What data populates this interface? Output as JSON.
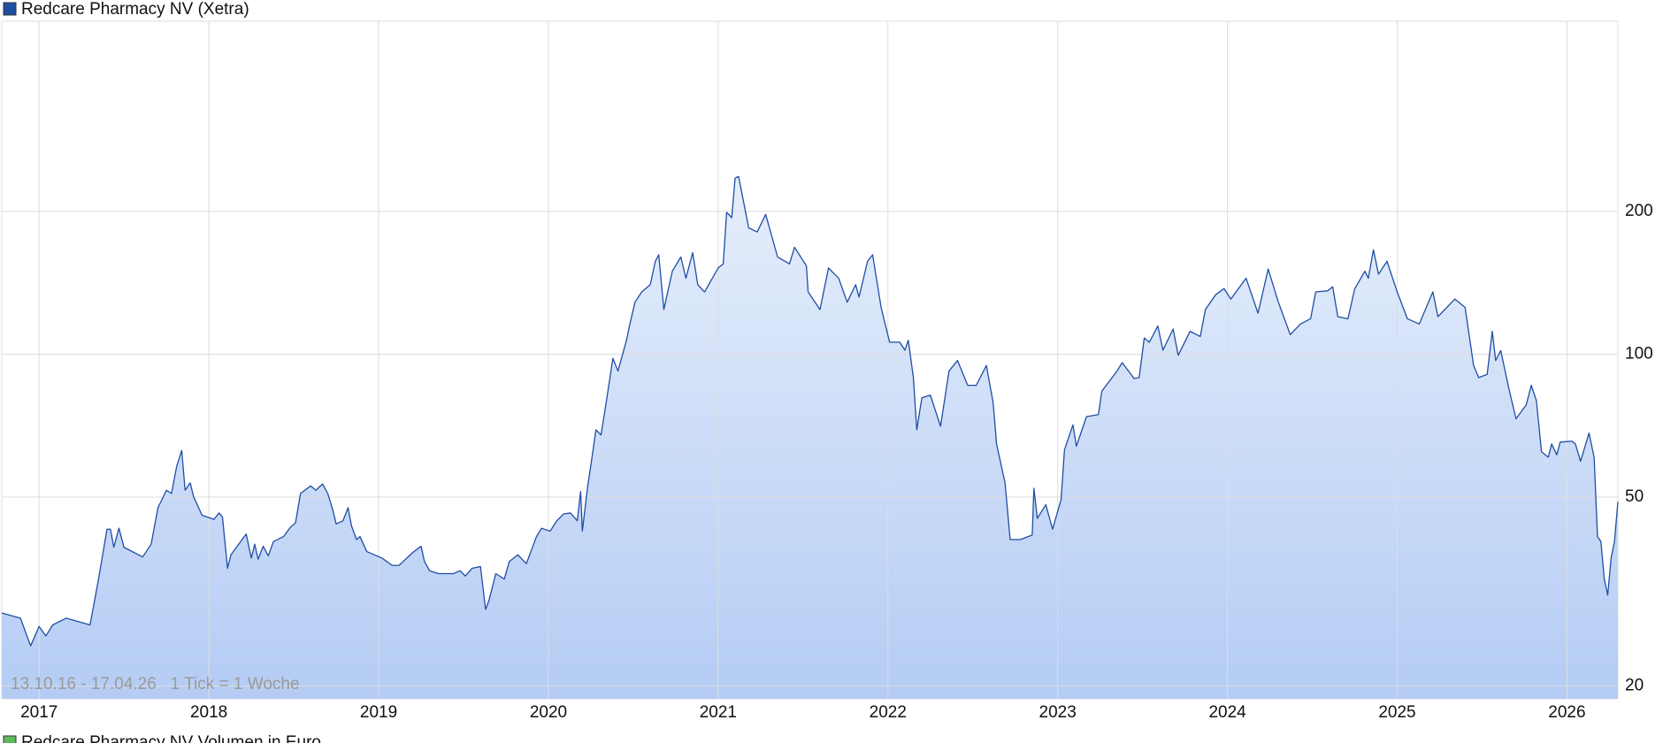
{
  "chart_data": {
    "type": "area",
    "annotation": "13.10.16 - 17.04.26   1 Tick = 1 Woche",
    "secondary_legend": {
      "name": "Redcare Pharmacy NV Volumen in Euro",
      "color": "#5cb85c"
    },
    "log_y": true,
    "grid": true,
    "legend": "top-left",
    "fill_top": "#e6eefb",
    "fill_bottom": "#b4ccf4",
    "xlim": [
      2016.78,
      2026.3
    ],
    "xticks": [
      2017,
      2018,
      2019,
      2020,
      2021,
      2022,
      2023,
      2024,
      2025,
      2026
    ],
    "ylim": [
      18.8,
      503
    ],
    "yticks": [
      20,
      50,
      100,
      200
    ],
    "x": [
      2016.78,
      2016.89,
      2016.95,
      2017.0,
      2017.04,
      2017.08,
      2017.16,
      2017.3,
      2017.35,
      2017.4,
      2017.42,
      2017.44,
      2017.47,
      2017.5,
      2017.61,
      2017.66,
      2017.7,
      2017.75,
      2017.78,
      2017.81,
      2017.84,
      2017.86,
      2017.89,
      2017.91,
      2017.96,
      2018.03,
      2018.06,
      2018.08,
      2018.11,
      2018.13,
      2018.2,
      2018.22,
      2018.25,
      2018.27,
      2018.29,
      2018.32,
      2018.35,
      2018.38,
      2018.44,
      2018.48,
      2018.51,
      2018.54,
      2018.6,
      2018.63,
      2018.67,
      2018.7,
      2018.73,
      2018.75,
      2018.79,
      2018.82,
      2018.84,
      2018.87,
      2018.89,
      2018.93,
      2019.02,
      2019.08,
      2019.12,
      2019.2,
      2019.25,
      2019.27,
      2019.3,
      2019.35,
      2019.44,
      2019.48,
      2019.51,
      2019.55,
      2019.6,
      2019.63,
      2019.65,
      2019.69,
      2019.74,
      2019.77,
      2019.82,
      2019.87,
      2019.93,
      2019.96,
      2020.01,
      2020.05,
      2020.09,
      2020.13,
      2020.17,
      2020.19,
      2020.2,
      2020.23,
      2020.26,
      2020.28,
      2020.31,
      2020.34,
      2020.38,
      2020.41,
      2020.46,
      2020.48,
      2020.51,
      2020.55,
      2020.6,
      2020.63,
      2020.65,
      2020.68,
      2020.73,
      2020.78,
      2020.81,
      2020.85,
      2020.88,
      2020.92,
      2021.0,
      2021.03,
      2021.05,
      2021.08,
      2021.1,
      2021.12,
      2021.18,
      2021.23,
      2021.28,
      2021.35,
      2021.42,
      2021.45,
      2021.52,
      2021.53,
      2021.6,
      2021.65,
      2021.71,
      2021.76,
      2021.81,
      2021.83,
      2021.88,
      2021.91,
      2021.96,
      2022.01,
      2022.07,
      2022.1,
      2022.12,
      2022.15,
      2022.17,
      2022.2,
      2022.25,
      2022.31,
      2022.36,
      2022.41,
      2022.47,
      2022.52,
      2022.58,
      2022.62,
      2022.64,
      2022.69,
      2022.72,
      2022.78,
      2022.85,
      2022.86,
      2022.88,
      2022.93,
      2022.97,
      2023.02,
      2023.04,
      2023.09,
      2023.11,
      2023.17,
      2023.24,
      2023.26,
      2023.35,
      2023.38,
      2023.45,
      2023.48,
      2023.51,
      2023.54,
      2023.59,
      2023.62,
      2023.68,
      2023.71,
      2023.78,
      2023.84,
      2023.87,
      2023.93,
      2023.98,
      2024.02,
      2024.11,
      2024.18,
      2024.24,
      2024.3,
      2024.37,
      2024.43,
      2024.49,
      2024.52,
      2024.59,
      2024.62,
      2024.65,
      2024.71,
      2024.75,
      2024.81,
      2024.83,
      2024.86,
      2024.89,
      2024.94,
      2025.0,
      2025.06,
      2025.13,
      2025.21,
      2025.24,
      2025.34,
      2025.4,
      2025.45,
      2025.48,
      2025.53,
      2025.56,
      2025.58,
      2025.61,
      2025.66,
      2025.7,
      2025.76,
      2025.79,
      2025.82,
      2025.85,
      2025.89,
      2025.91,
      2025.94,
      2025.96,
      2026.03,
      2026.05,
      2026.08,
      2026.13,
      2026.16,
      2026.18,
      2026.2,
      2026.22,
      2026.24,
      2026.26,
      2026.28,
      2026.3
    ],
    "series": [
      {
        "name": "Redcare Pharmacy NV (Xetra)",
        "color": "#1f4ea3",
        "values": [
          28.5,
          27.8,
          24.3,
          26.7,
          25.5,
          26.9,
          27.8,
          26.9,
          33.6,
          42.8,
          42.8,
          39.2,
          43.0,
          39.2,
          37.4,
          39.8,
          47.5,
          51.7,
          50.9,
          58,
          62.7,
          51.7,
          53.6,
          50.1,
          45.8,
          44.9,
          46.3,
          45.4,
          35.4,
          37.8,
          40.9,
          41.8,
          37.2,
          39.8,
          37.0,
          39.4,
          37.6,
          40.3,
          41.3,
          43.2,
          44.1,
          50.9,
          52.8,
          51.7,
          53.3,
          50.9,
          47,
          43.9,
          44.6,
          47.5,
          43.5,
          40.7,
          41.3,
          38.4,
          37.2,
          35.9,
          35.9,
          38.2,
          39.4,
          36.6,
          35.0,
          34.5,
          34.5,
          35.0,
          34.1,
          35.4,
          35.7,
          29.0,
          30.3,
          34.5,
          33.6,
          36.6,
          37.8,
          36.2,
          41.3,
          43.0,
          42.4,
          44.6,
          46.1,
          46.3,
          44.6,
          51.4,
          42.4,
          52.2,
          61.7,
          69.3,
          67.6,
          79,
          98,
          92.2,
          107,
          115.8,
          128.7,
          135.3,
          140.1,
          157,
          162,
          124.2,
          149.6,
          160.3,
          144.6,
          163.7,
          140.1,
          135.3,
          152,
          155,
          199,
          194,
          235,
          237,
          184.6,
          181,
          197,
          160.3,
          155,
          168,
          153.5,
          135.3,
          124.2,
          152,
          144.6,
          128.7,
          140.1,
          132,
          157,
          162,
          125.5,
          106,
          106,
          102,
          107,
          89.3,
          69.3,
          81,
          82,
          70.5,
          92.2,
          97,
          86,
          86,
          94.7,
          79,
          64.7,
          53.6,
          40.7,
          40.7,
          41.6,
          52.2,
          45.1,
          48.2,
          42.8,
          49.4,
          62.9,
          71,
          64,
          73.9,
          74.6,
          83.6,
          92.2,
          96,
          88.9,
          89.3,
          108.2,
          106,
          114.7,
          102,
          113,
          99.5,
          111.8,
          109,
          124.2,
          133.4,
          137.5,
          130.7,
          144.6,
          122,
          151.2,
          128.7,
          110,
          115.8,
          118.8,
          135.3,
          136,
          138.7,
          120,
          118.8,
          137.5,
          149.6,
          144.6,
          166,
          147.4,
          157,
          135.3,
          118.8,
          115.8,
          135.3,
          120,
          130.7,
          125.5,
          94.7,
          89.3,
          90.7,
          111.8,
          97,
          101.8,
          84,
          73.1,
          78.2,
          86,
          79.8,
          62.3,
          60.7,
          64.7,
          61.4,
          65.3,
          65.6,
          64.7,
          59.5,
          68.2,
          60.7,
          41.3,
          40.3,
          33.6,
          31.1,
          37.2,
          40.3,
          48.9
        ]
      }
    ]
  }
}
